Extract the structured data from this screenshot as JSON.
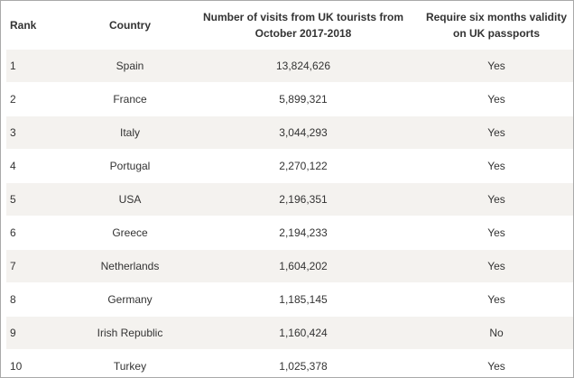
{
  "table": {
    "headers": {
      "rank": "Rank",
      "country": "Country",
      "visits": "Number of visits from UK tourists from October 2017-2018",
      "requirement": "Require six months validity on UK passports"
    },
    "rows": [
      {
        "rank": "1",
        "country": "Spain",
        "visits": "13,824,626",
        "requirement": "Yes"
      },
      {
        "rank": "2",
        "country": "France",
        "visits": "5,899,321",
        "requirement": "Yes"
      },
      {
        "rank": "3",
        "country": "Italy",
        "visits": "3,044,293",
        "requirement": "Yes"
      },
      {
        "rank": "4",
        "country": "Portugal",
        "visits": "2,270,122",
        "requirement": "Yes"
      },
      {
        "rank": "5",
        "country": "USA",
        "visits": "2,196,351",
        "requirement": "Yes"
      },
      {
        "rank": "6",
        "country": "Greece",
        "visits": "2,194,233",
        "requirement": "Yes"
      },
      {
        "rank": "7",
        "country": "Netherlands",
        "visits": "1,604,202",
        "requirement": "Yes"
      },
      {
        "rank": "8",
        "country": "Germany",
        "visits": "1,185,145",
        "requirement": "Yes"
      },
      {
        "rank": "9",
        "country": "Irish Republic",
        "visits": "1,160,424",
        "requirement": "No"
      },
      {
        "rank": "10",
        "country": "Turkey",
        "visits": "1,025,378",
        "requirement": "Yes"
      }
    ]
  },
  "colors": {
    "stripe": "#f4f2ef",
    "text": "#333333",
    "border": "#a9a9a9"
  }
}
